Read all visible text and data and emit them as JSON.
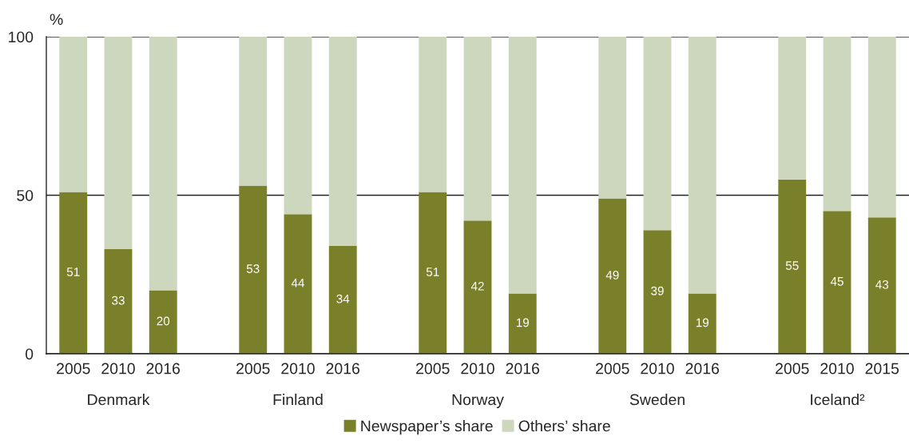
{
  "chart_data": {
    "type": "bar",
    "stacked": true,
    "ylabel": "%",
    "categories": [
      "2005",
      "2010",
      "2016",
      null,
      "2005",
      "2010",
      "2016",
      null,
      "2005",
      "2010",
      "2016",
      null,
      "2005",
      "2010",
      "2016",
      null,
      "2005",
      "2010",
      "2015"
    ],
    "series": [
      {
        "name": "Newspaper’s share",
        "color": "#7a8029",
        "values": [
          51,
          33,
          20,
          null,
          53,
          44,
          34,
          null,
          51,
          42,
          19,
          null,
          49,
          39,
          19,
          null,
          55,
          45,
          43
        ],
        "value_labels": [
          "51",
          "33",
          "20",
          null,
          "53",
          "44",
          "34",
          null,
          "51",
          "42",
          "19",
          null,
          "49",
          "39",
          "19",
          null,
          "55",
          "45",
          "43"
        ]
      },
      {
        "name": "Others’ share",
        "color": "#cdd7bd",
        "values": [
          49,
          67,
          80,
          null,
          47,
          56,
          66,
          null,
          49,
          58,
          81,
          null,
          51,
          61,
          81,
          null,
          45,
          55,
          57
        ]
      }
    ],
    "annotations": [
      "Denmark",
      "Finland",
      "Norway",
      "Sweden",
      "Iceland²"
    ],
    "ylim": [
      0,
      100
    ],
    "yticks": [
      0,
      50,
      100
    ],
    "grid": "y",
    "legend": "bottom"
  }
}
